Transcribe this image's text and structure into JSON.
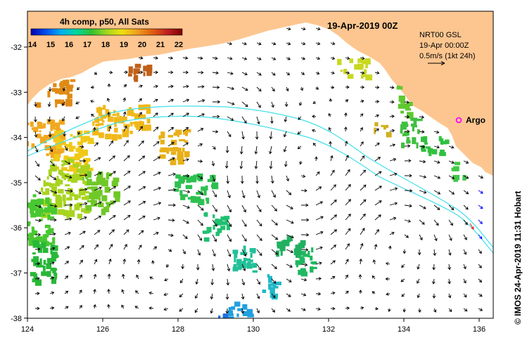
{
  "map": {
    "date_title": "19-Apr-2019 00Z",
    "colorbar": {
      "title": "4h comp, p50, All Sats",
      "tick_labels": [
        "14",
        "15",
        "16",
        "17",
        "18",
        "19",
        "20",
        "21",
        "22"
      ],
      "stops": [
        "#0000b0",
        "#0050f0",
        "#00b0f0",
        "#00d8a0",
        "#30c030",
        "#a0d820",
        "#f0e010",
        "#f0a020",
        "#e06010",
        "#c02020",
        "#800000"
      ]
    },
    "info": {
      "model": "NRT00 GSL",
      "time": "19-Apr 00:00Z",
      "scale": "0.5m/s (1kt 24h)"
    },
    "argo_label": "Argo",
    "credit": "© IMOS 24-Apr-2019 11:31 Hobart",
    "x_ticks": [
      "124",
      "126",
      "128",
      "130",
      "132",
      "134",
      "136"
    ],
    "y_ticks": [
      "-32",
      "-33",
      "-34",
      "-35",
      "-36",
      "-37",
      "-38"
    ],
    "colors": {
      "land": "#fdc690",
      "contour": "#40e0e8",
      "argo": "#ff00ff",
      "vector": "#000000",
      "red_vector": "#ff0000",
      "blue_vector": "#0000ff"
    }
  }
}
